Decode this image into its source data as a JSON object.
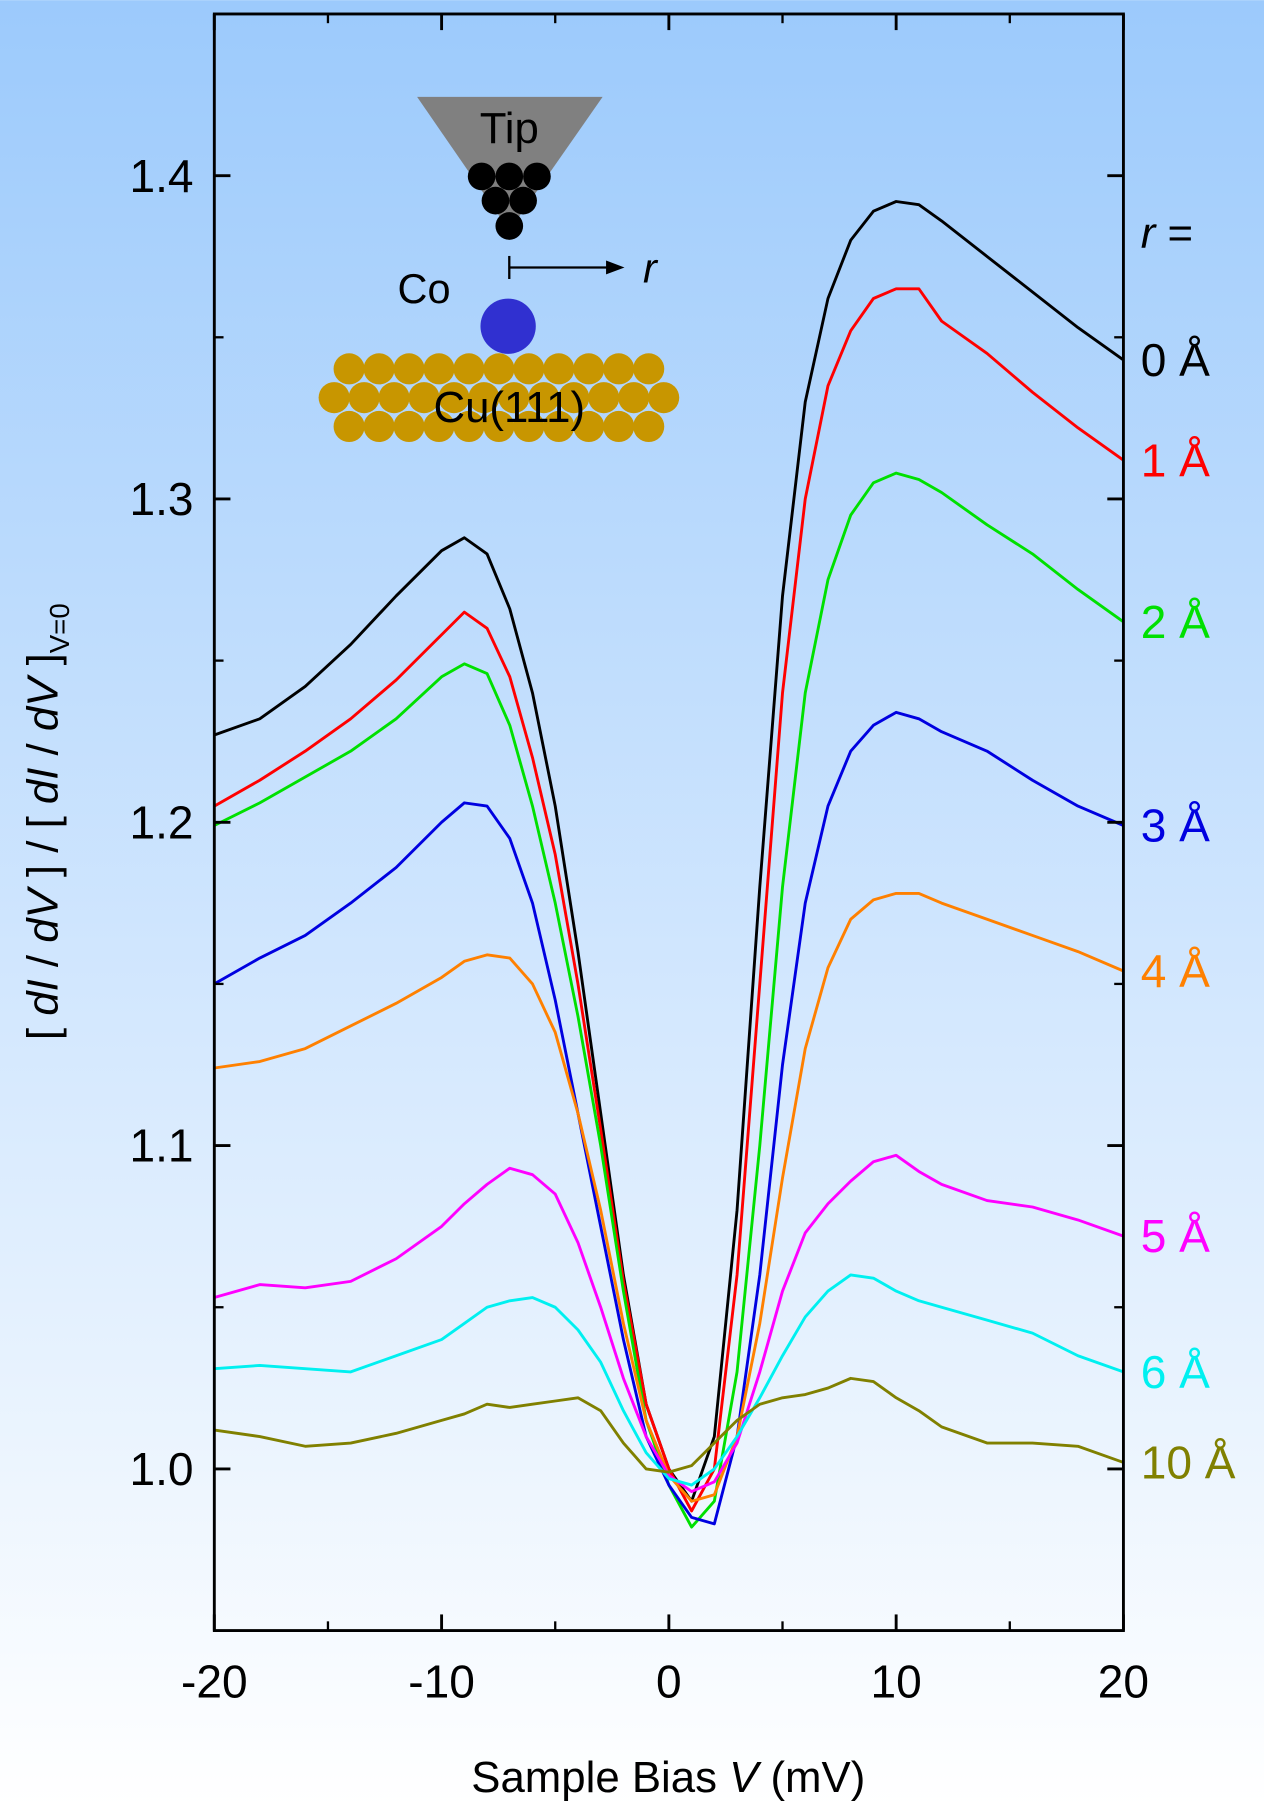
{
  "chart_data": {
    "type": "line",
    "xlabel_parts": [
      "Sample Bias ",
      "V",
      "  (mV)"
    ],
    "ylabel_parts": [
      "[ ",
      "dI",
      " / ",
      "dV",
      " ]  /  [ ",
      "dI",
      " / ",
      "dV",
      " ]"
    ],
    "ylabel_sub": "V=0",
    "legend_title_parts": [
      "r",
      " ="
    ],
    "annotations": {
      "tip": "Tip",
      "adatom": "Co",
      "distance": "r",
      "surface": "Cu(111)"
    },
    "x": [
      -20,
      -18,
      -16,
      -14,
      -12,
      -10,
      -9,
      -8,
      -7,
      -6,
      -5,
      -4,
      -3,
      -2,
      -1,
      0,
      1,
      2,
      3,
      4,
      5,
      6,
      7,
      8,
      9,
      10,
      11,
      12,
      14,
      16,
      18,
      20
    ],
    "series": [
      {
        "name": "0 Å",
        "color": "#000000",
        "values": [
          1.227,
          1.232,
          1.242,
          1.255,
          1.27,
          1.284,
          1.288,
          1.283,
          1.266,
          1.24,
          1.205,
          1.16,
          1.11,
          1.06,
          1.02,
          1.0,
          0.99,
          1.01,
          1.08,
          1.18,
          1.27,
          1.33,
          1.362,
          1.38,
          1.389,
          1.392,
          1.391,
          1.386,
          1.375,
          1.364,
          1.353,
          1.343
        ]
      },
      {
        "name": "1 Å",
        "color": "#ff0000",
        "values": [
          1.205,
          1.213,
          1.222,
          1.232,
          1.244,
          1.258,
          1.265,
          1.26,
          1.245,
          1.22,
          1.19,
          1.15,
          1.105,
          1.058,
          1.02,
          1.0,
          0.987,
          1.0,
          1.06,
          1.15,
          1.24,
          1.3,
          1.335,
          1.352,
          1.362,
          1.365,
          1.365,
          1.355,
          1.345,
          1.333,
          1.322,
          1.312
        ]
      },
      {
        "name": "2 Å",
        "color": "#00e000",
        "values": [
          1.199,
          1.206,
          1.214,
          1.222,
          1.232,
          1.245,
          1.249,
          1.246,
          1.23,
          1.205,
          1.175,
          1.14,
          1.1,
          1.055,
          1.015,
          0.995,
          0.982,
          0.99,
          1.03,
          1.1,
          1.18,
          1.24,
          1.275,
          1.295,
          1.305,
          1.308,
          1.306,
          1.302,
          1.292,
          1.283,
          1.272,
          1.262
        ]
      },
      {
        "name": "3 Å",
        "color": "#0000e0",
        "values": [
          1.15,
          1.158,
          1.165,
          1.175,
          1.186,
          1.2,
          1.206,
          1.205,
          1.195,
          1.175,
          1.145,
          1.11,
          1.075,
          1.04,
          1.01,
          0.995,
          0.985,
          0.983,
          1.01,
          1.06,
          1.125,
          1.175,
          1.205,
          1.222,
          1.23,
          1.234,
          1.232,
          1.228,
          1.222,
          1.213,
          1.205,
          1.199
        ]
      },
      {
        "name": "4 Å",
        "color": "#ff8000",
        "values": [
          1.124,
          1.126,
          1.13,
          1.137,
          1.144,
          1.152,
          1.157,
          1.159,
          1.158,
          1.15,
          1.135,
          1.11,
          1.08,
          1.045,
          1.015,
          0.998,
          0.99,
          0.992,
          1.01,
          1.045,
          1.09,
          1.13,
          1.155,
          1.17,
          1.176,
          1.178,
          1.178,
          1.175,
          1.17,
          1.165,
          1.16,
          1.154
        ]
      },
      {
        "name": "5 Å",
        "color": "#ff00ff",
        "values": [
          1.053,
          1.057,
          1.056,
          1.058,
          1.065,
          1.075,
          1.082,
          1.088,
          1.093,
          1.091,
          1.085,
          1.07,
          1.05,
          1.028,
          1.01,
          0.998,
          0.993,
          0.996,
          1.008,
          1.03,
          1.055,
          1.073,
          1.082,
          1.089,
          1.095,
          1.097,
          1.092,
          1.088,
          1.083,
          1.081,
          1.077,
          1.072
        ]
      },
      {
        "name": "6 Å",
        "color": "#00f0f0",
        "values": [
          1.031,
          1.032,
          1.031,
          1.03,
          1.035,
          1.04,
          1.045,
          1.05,
          1.052,
          1.053,
          1.05,
          1.043,
          1.033,
          1.018,
          1.005,
          0.997,
          0.995,
          1.0,
          1.01,
          1.022,
          1.035,
          1.047,
          1.055,
          1.06,
          1.059,
          1.055,
          1.052,
          1.05,
          1.046,
          1.042,
          1.035,
          1.03
        ]
      },
      {
        "name": "10 Å",
        "color": "#808000",
        "values": [
          1.012,
          1.01,
          1.007,
          1.008,
          1.011,
          1.015,
          1.017,
          1.02,
          1.019,
          1.02,
          1.021,
          1.022,
          1.018,
          1.008,
          1.0,
          0.999,
          1.001,
          1.008,
          1.015,
          1.02,
          1.022,
          1.023,
          1.025,
          1.028,
          1.027,
          1.022,
          1.018,
          1.013,
          1.008,
          1.008,
          1.007,
          1.002
        ]
      }
    ],
    "xlim": [
      -20,
      20
    ],
    "ylim": [
      0.95,
      1.45
    ],
    "xticks": [
      -20,
      -10,
      0,
      10,
      20
    ],
    "xminorticks": [
      -15,
      -5,
      5,
      15
    ],
    "yticks": [
      {
        "value": 1,
        "label": "1.0"
      },
      1.1,
      1.2,
      1.3,
      1.4
    ],
    "yminorticks": [
      1.05,
      1.15,
      1.25,
      1.35
    ]
  }
}
